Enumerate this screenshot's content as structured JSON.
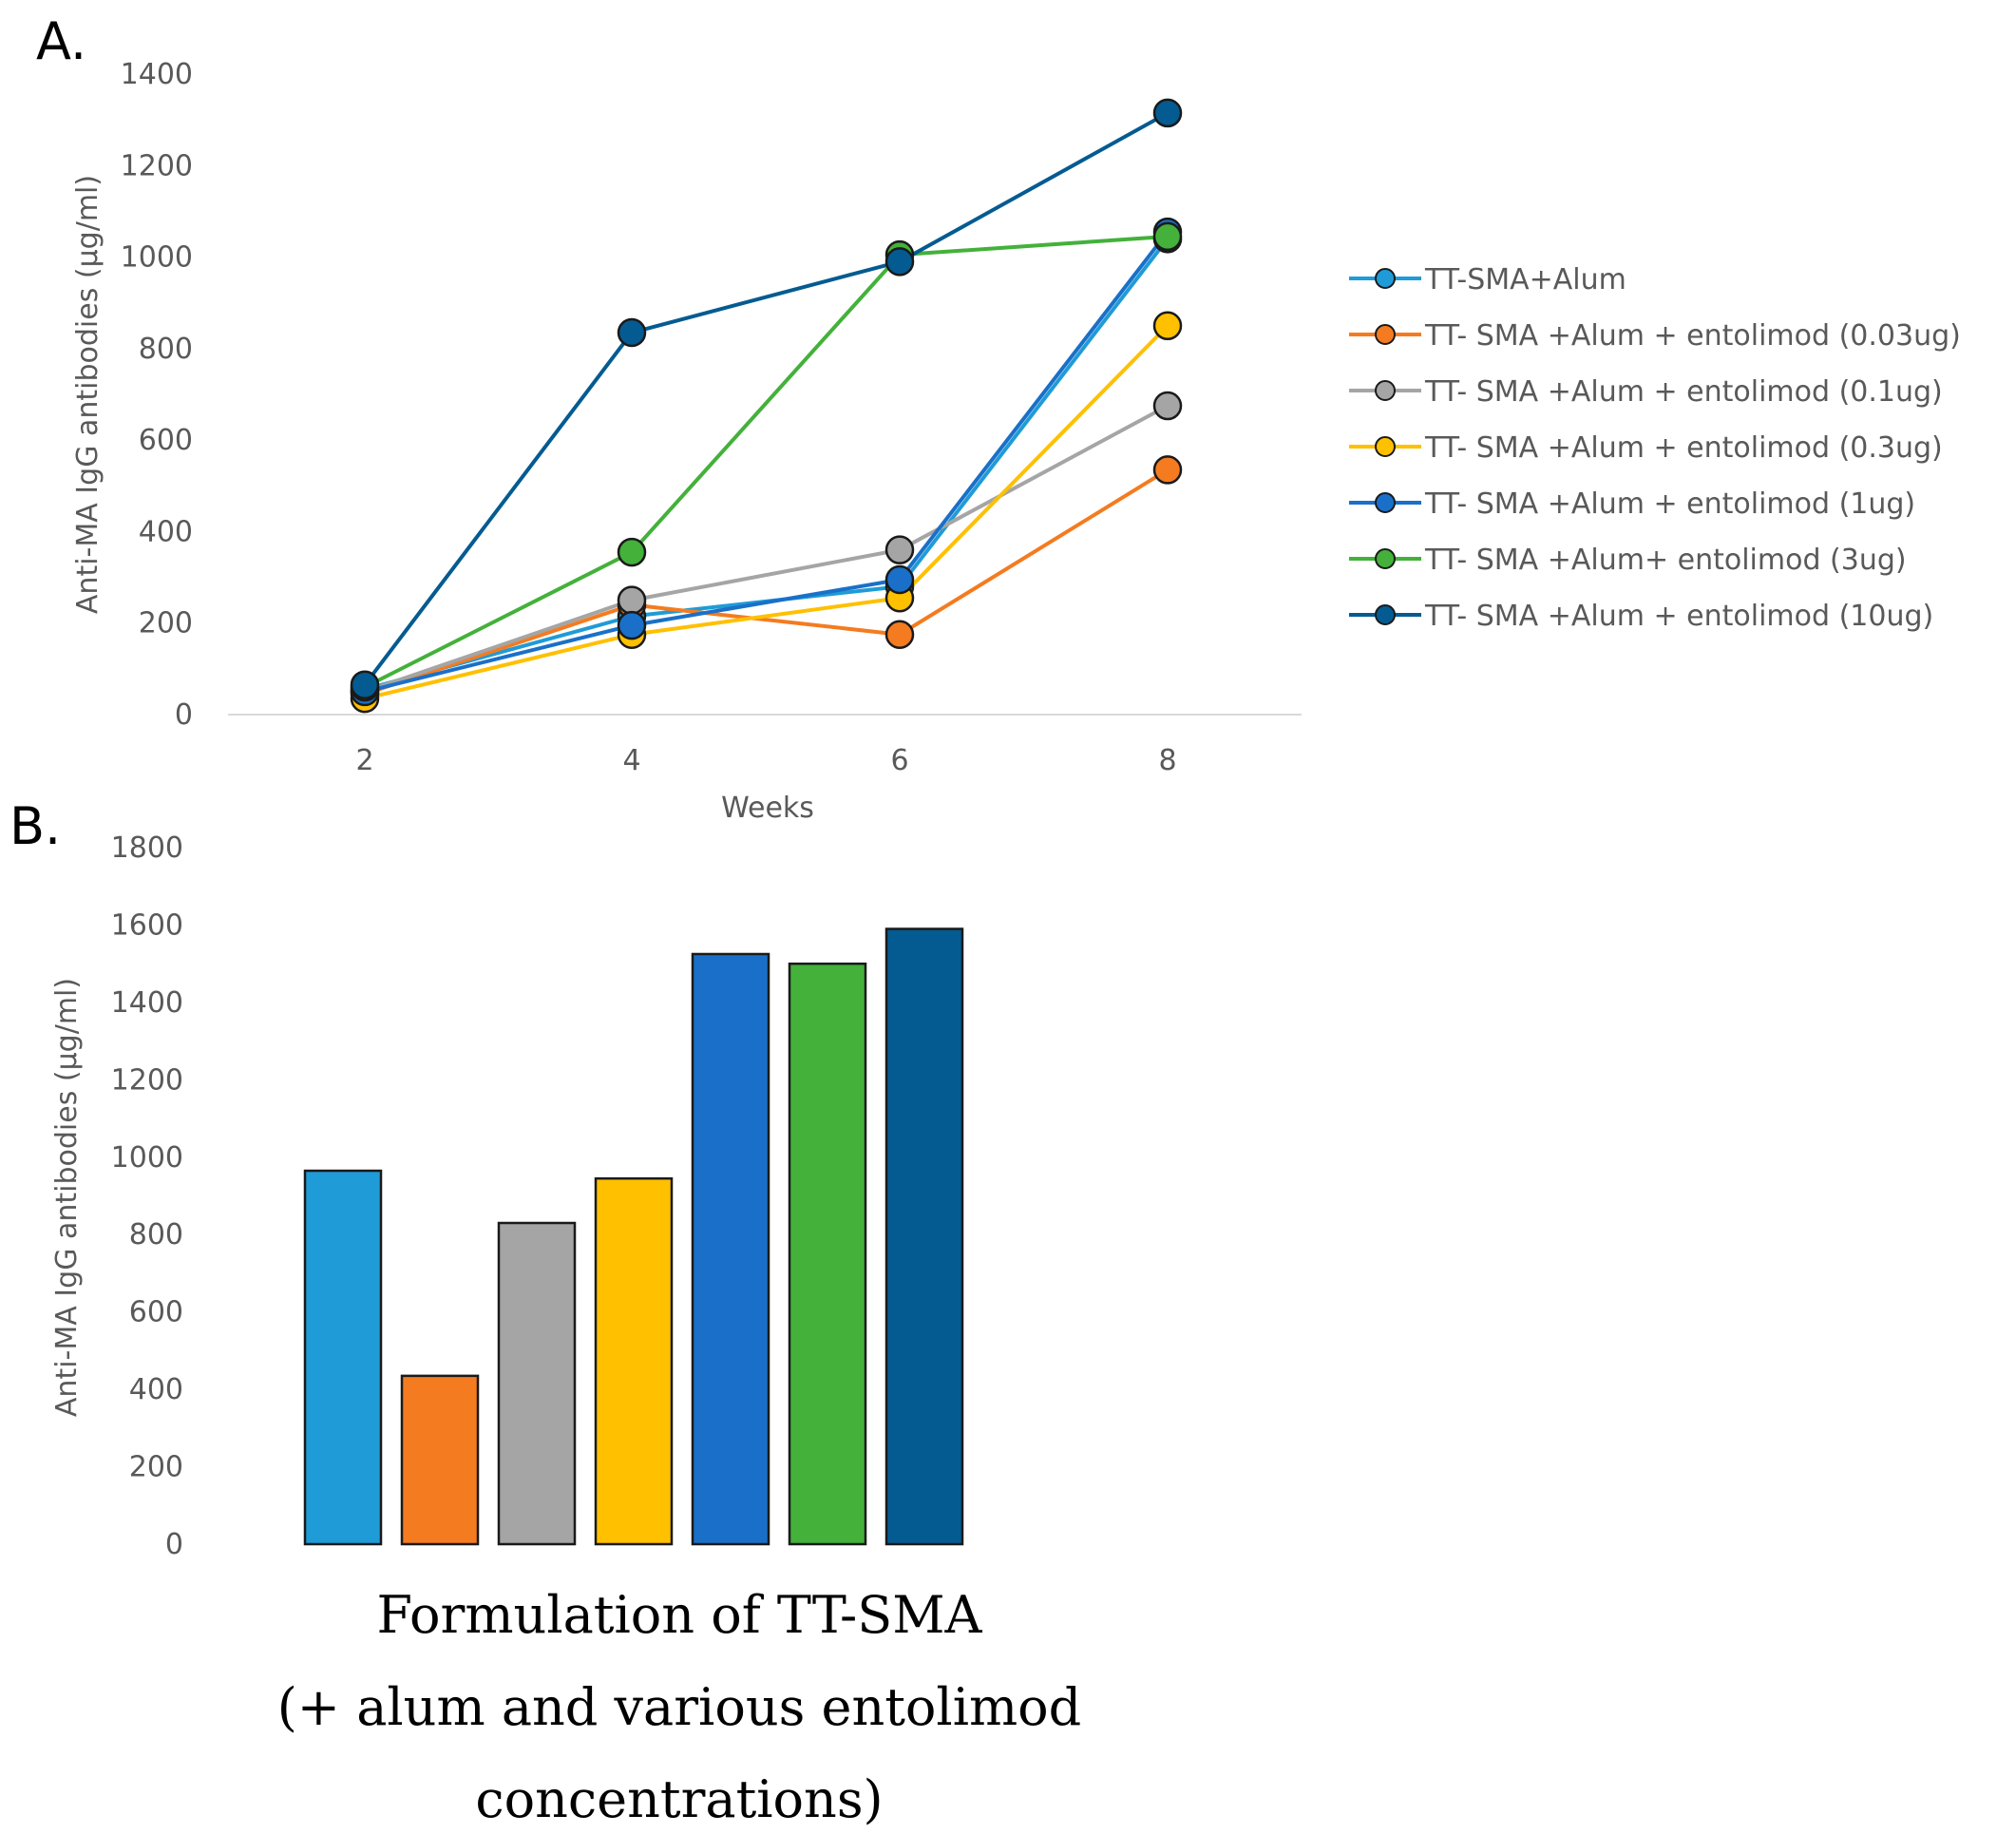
{
  "panel_labels": {
    "a": "A.",
    "b": "B."
  },
  "colors": {
    "series": [
      "#1f9bd7",
      "#f47b20",
      "#a5a5a5",
      "#ffc000",
      "#1a70c8",
      "#43b13a",
      "#045b91"
    ],
    "axis": "#d9d9d9",
    "text": "#595959"
  },
  "chart_data": [
    {
      "type": "line",
      "title": "",
      "x": [
        2,
        4,
        6,
        8
      ],
      "x_tick_labels": [
        "2",
        "4",
        "6",
        "8"
      ],
      "xlabel": "Weeks",
      "ylabel": "Anti-MA IgG antibodies (µg/ml)",
      "ylim": [
        0,
        1400
      ],
      "y_ticks": [
        0,
        200,
        400,
        600,
        800,
        1000,
        1200,
        1400
      ],
      "grid": false,
      "legend_position": "right",
      "series": [
        {
          "name": "TT-SMA+Alum",
          "values": [
            55,
            215,
            280,
            1040
          ]
        },
        {
          "name": "TT- SMA +Alum + entolimod (0.03ug)",
          "values": [
            45,
            240,
            175,
            535
          ]
        },
        {
          "name": "TT- SMA +Alum + entolimod (0.1ug)",
          "values": [
            50,
            250,
            360,
            675
          ]
        },
        {
          "name": "TT- SMA +Alum + entolimod (0.3ug)",
          "values": [
            35,
            175,
            255,
            850
          ]
        },
        {
          "name": "TT- SMA +Alum + entolimod (1ug)",
          "values": [
            50,
            195,
            295,
            1055
          ]
        },
        {
          "name": "TT- SMA +Alum+ entolimod (3ug)",
          "values": [
            60,
            355,
            1005,
            1045
          ]
        },
        {
          "name": "TT- SMA +Alum + entolimod (10ug)",
          "values": [
            65,
            835,
            990,
            1315
          ]
        }
      ]
    },
    {
      "type": "bar",
      "categories": [
        "TT-SMA+Alum",
        "TT- SMA +Alum + entolimod (0.03ug)",
        "TT- SMA +Alum + entolimod (0.1ug)",
        "TT- SMA +Alum + entolimod (0.3ug)",
        "TT- SMA +Alum + entolimod (1ug)",
        "TT- SMA +Alum+ entolimod (3ug)",
        "TT- SMA +Alum + entolimod (10ug)"
      ],
      "values": [
        965,
        435,
        830,
        945,
        1525,
        1500,
        1590
      ],
      "ylabel": "Anti-MA IgG antibodies (µg/ml)",
      "ylim": [
        0,
        1800
      ],
      "y_ticks": [
        0,
        200,
        400,
        600,
        800,
        1000,
        1200,
        1400,
        1600,
        1800
      ],
      "xlabel_lines": [
        "Formulation of TT-SMA",
        "(+ alum and various entolimod",
        "concentrations)"
      ],
      "grid": false
    }
  ]
}
